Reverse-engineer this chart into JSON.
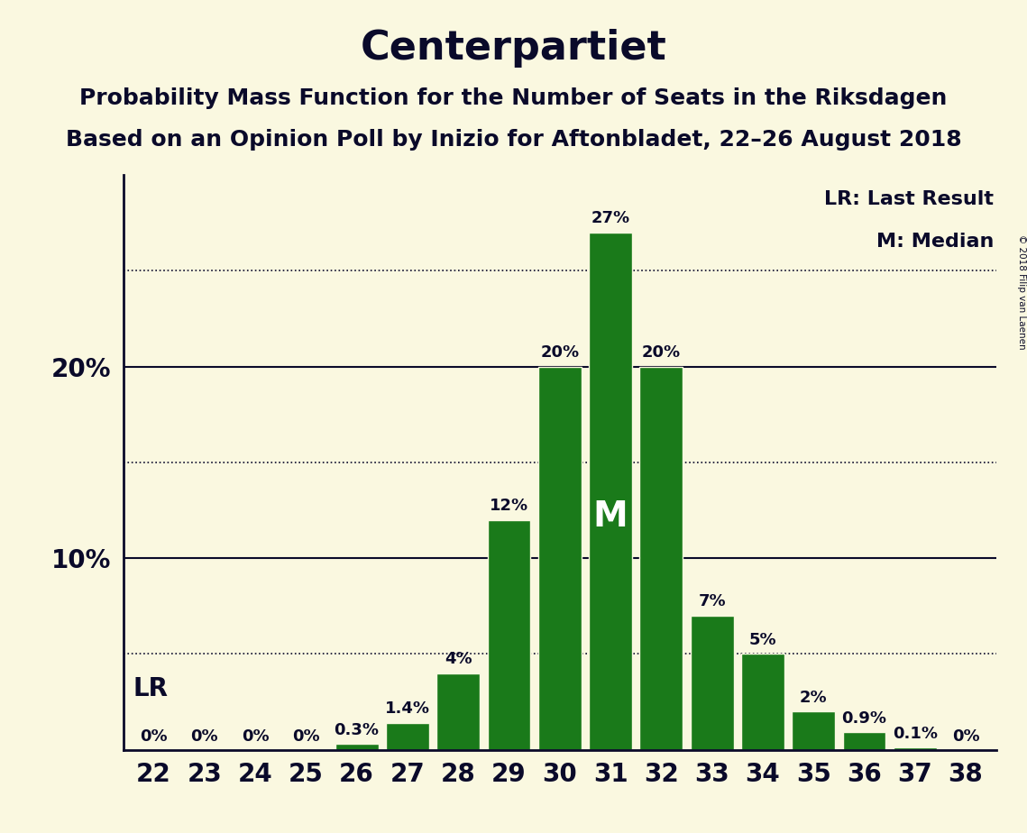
{
  "title": "Centerpartiet",
  "subtitle1": "Probability Mass Function for the Number of Seats in the Riksdagen",
  "subtitle2": "Based on an Opinion Poll by Inizio for Aftonbladet, 22–26 August 2018",
  "copyright": "© 2018 Filip van Laenen",
  "seats": [
    22,
    23,
    24,
    25,
    26,
    27,
    28,
    29,
    30,
    31,
    32,
    33,
    34,
    35,
    36,
    37,
    38
  ],
  "probabilities": [
    0.0,
    0.0,
    0.0,
    0.0,
    0.3,
    1.4,
    4.0,
    12.0,
    20.0,
    27.0,
    20.0,
    7.0,
    5.0,
    2.0,
    0.9,
    0.1,
    0.0
  ],
  "prob_labels": [
    "0%",
    "0%",
    "0%",
    "0%",
    "0.3%",
    "1.4%",
    "4%",
    "12%",
    "20%",
    "27%",
    "20%",
    "7%",
    "5%",
    "2%",
    "0.9%",
    "0.1%",
    "0%"
  ],
  "bar_color": "#1a7a1a",
  "bar_edge_color": "#faf8e0",
  "background_color": "#faf8e0",
  "text_color": "#0a0a2a",
  "lr_seat": 22,
  "median_seat": 31,
  "legend_lr": "LR: Last Result",
  "legend_m": "M: Median",
  "yticks": [
    10,
    20
  ],
  "dotted_lines": [
    5,
    15,
    25
  ],
  "ylim_max": 30,
  "title_fontsize": 32,
  "subtitle_fontsize": 18,
  "tick_fontsize": 20,
  "bar_label_fontsize": 13,
  "median_label_fontsize": 28,
  "lr_label_fontsize": 20,
  "legend_fontsize": 16
}
